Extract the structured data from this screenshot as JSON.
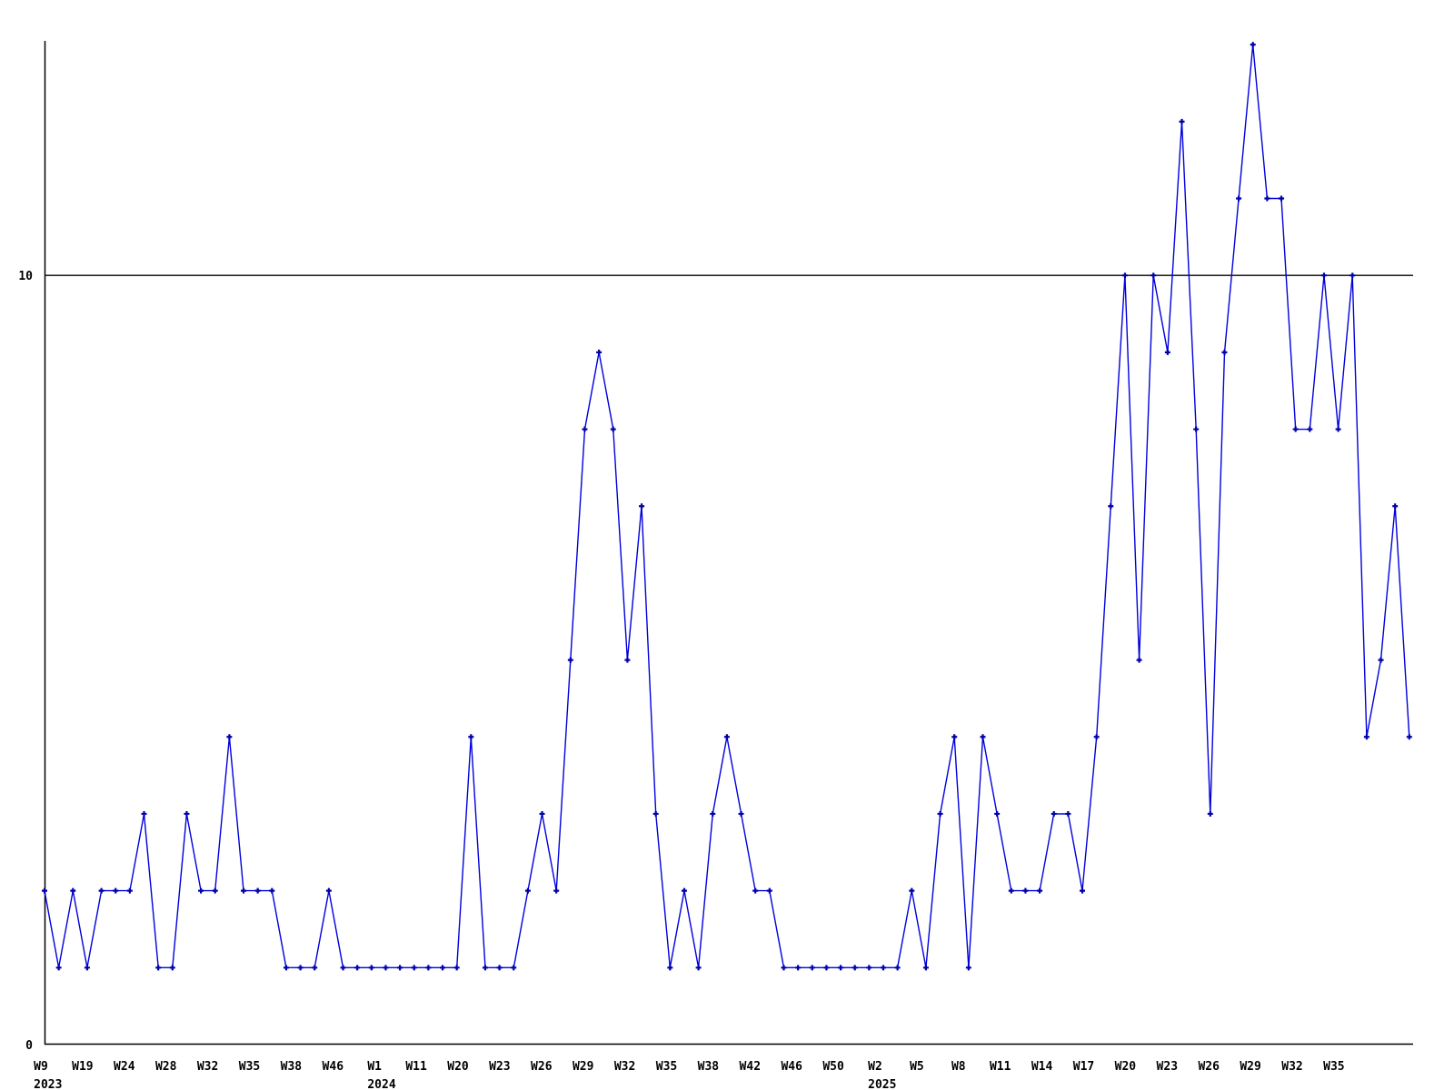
{
  "chart_data": {
    "type": "line",
    "title": "",
    "legend": null,
    "grid": false,
    "series": [
      {
        "name": "weekly-values",
        "color": "#0000dd",
        "marker_color": "#0000aa",
        "marker": "plus",
        "values": [
          2,
          1,
          2,
          1,
          2,
          2,
          2,
          3,
          1,
          1,
          3,
          2,
          2,
          4,
          2,
          2,
          2,
          1,
          1,
          1,
          2,
          1,
          1,
          1,
          1,
          1,
          1,
          1,
          1,
          1,
          4,
          1,
          1,
          1,
          2,
          3,
          2,
          5,
          8,
          9,
          8,
          5,
          7,
          3,
          1,
          2,
          1,
          3,
          4,
          3,
          2,
          2,
          1,
          1,
          1,
          1,
          1,
          1,
          1,
          1,
          1,
          2,
          1,
          3,
          4,
          1,
          4,
          3,
          2,
          2,
          2,
          3,
          3,
          2,
          4,
          7,
          10,
          5,
          10,
          9,
          12,
          8,
          3,
          9,
          11,
          13,
          11,
          11,
          8,
          8,
          10,
          8,
          10,
          4,
          5,
          7,
          4
        ]
      }
    ],
    "x_axis": {
      "tick_labels": [
        "W9",
        "W19",
        "W24",
        "W28",
        "W32",
        "W35",
        "W38",
        "W46",
        "W1",
        "W11",
        "W20",
        "W23",
        "W26",
        "W29",
        "W32",
        "W35",
        "W38",
        "W42",
        "W46",
        "W50",
        "W2",
        "W5",
        "W8",
        "W11",
        "W14",
        "W17",
        "W20",
        "W23",
        "W26",
        "W29",
        "W32",
        "W35"
      ],
      "year_labels": [
        {
          "text": "2023",
          "tick_index": 0
        },
        {
          "text": "2024",
          "tick_index": 8
        },
        {
          "text": "2025",
          "tick_index": 20
        }
      ]
    },
    "y_axis": {
      "tick_labels": [
        "0",
        "10"
      ],
      "tick_values": [
        0,
        10
      ],
      "range": [
        0,
        13.03
      ]
    },
    "reference_line": {
      "value": 10,
      "color": "#000000"
    },
    "axis_color": "#000000"
  }
}
